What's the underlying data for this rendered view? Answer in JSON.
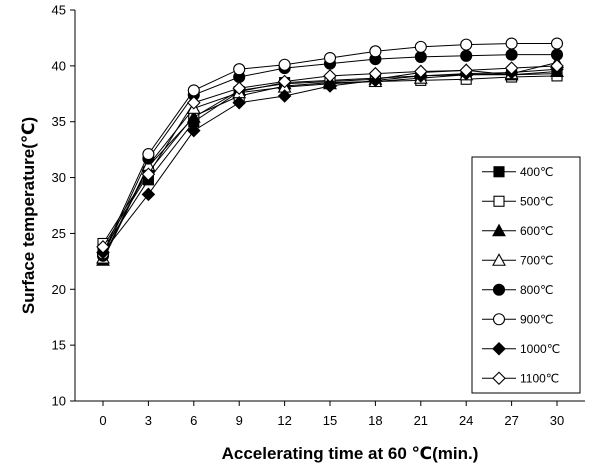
{
  "chart_data": {
    "type": "line",
    "xlabel": "Accelerating time at 60 ℃(min.)",
    "ylabel": "Surface temperature(℃)",
    "x": [
      0,
      3,
      6,
      9,
      12,
      15,
      18,
      21,
      24,
      27,
      30
    ],
    "xticks": [
      "0",
      "3",
      "6",
      "9",
      "12",
      "15",
      "18",
      "21",
      "24",
      "27",
      "30"
    ],
    "yticks": [
      "10",
      "15",
      "20",
      "25",
      "30",
      "35",
      "40",
      "45"
    ],
    "ylim": [
      10,
      45
    ],
    "legend_position": "right",
    "series": [
      {
        "name": "400℃",
        "marker": "square",
        "values": [
          23.5,
          29.8,
          35.0,
          37.7,
          38.5,
          38.7,
          38.9,
          39.1,
          39.2,
          39.2,
          39.3
        ]
      },
      {
        "name": "500℃",
        "marker": "square-open",
        "values": [
          24.1,
          30.5,
          35.5,
          37.3,
          38.2,
          38.5,
          38.6,
          38.7,
          38.8,
          39.0,
          39.1
        ]
      },
      {
        "name": "600℃",
        "marker": "triangle",
        "values": [
          22.6,
          31.0,
          35.4,
          37.8,
          38.4,
          38.6,
          38.8,
          39.4,
          39.6,
          39.2,
          39.5
        ]
      },
      {
        "name": "700℃",
        "marker": "triangle-open",
        "values": [
          22.8,
          31.1,
          36.2,
          37.6,
          38.1,
          38.4,
          38.6,
          38.9,
          39.2,
          39.3,
          40.3
        ]
      },
      {
        "name": "800℃",
        "marker": "circle",
        "values": [
          23.0,
          31.7,
          37.4,
          39.0,
          39.8,
          40.2,
          40.6,
          40.8,
          40.9,
          41.0,
          41.0
        ]
      },
      {
        "name": "900℃",
        "marker": "circle-open",
        "values": [
          23.2,
          32.1,
          37.8,
          39.7,
          40.1,
          40.7,
          41.3,
          41.7,
          41.9,
          42.0,
          42.0
        ]
      },
      {
        "name": "1000℃",
        "marker": "diamond",
        "values": [
          23.3,
          28.5,
          34.2,
          36.7,
          37.3,
          38.2,
          38.7,
          39.1,
          39.3,
          39.4,
          39.7
        ]
      },
      {
        "name": "1100℃",
        "marker": "diamond-open",
        "values": [
          23.8,
          30.3,
          36.7,
          38.0,
          38.6,
          39.1,
          39.3,
          39.5,
          39.6,
          39.8,
          40.0
        ]
      }
    ]
  }
}
